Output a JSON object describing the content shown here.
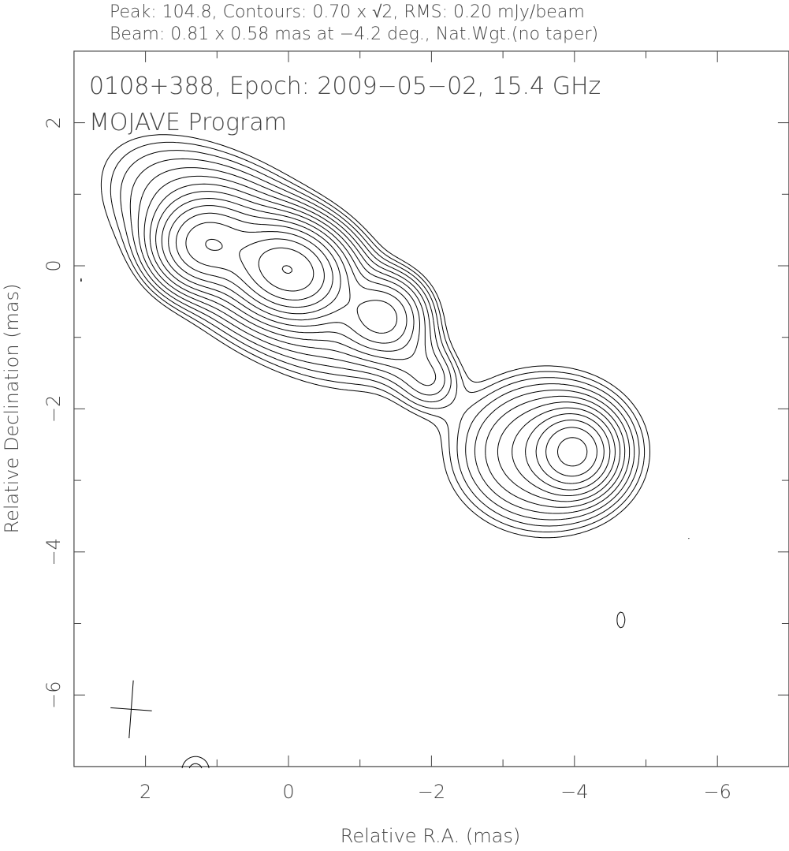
{
  "header": {
    "line1": "Peak: 104.8, Contours: 0.70 x √2, RMS: 0.20 mJy/beam",
    "line2": "Beam: 0.81 x 0.58 mas at −4.2 deg., Nat.Wgt.(no taper)"
  },
  "chart_data": {
    "type": "contour",
    "title": "0108+388, Epoch: 2009−05−02, 15.4 GHz",
    "subtitle": "MOJAVE Program",
    "xlabel": "Relative R.A. (mas)",
    "ylabel": "Relative Declination (mas)",
    "xlim": [
      3,
      -7
    ],
    "ylim": [
      -7,
      3
    ],
    "x_ticks": [
      "2",
      "0",
      "−2",
      "−4",
      "−6"
    ],
    "x_tick_values": [
      2,
      0,
      -2,
      -4,
      -6
    ],
    "y_ticks": [
      "2",
      "0",
      "−2",
      "−4",
      "−6"
    ],
    "y_tick_values": [
      2,
      0,
      -2,
      -4,
      -6
    ],
    "peak_mjy_per_beam": 104.8,
    "lowest_contour_mjy_per_beam": 0.7,
    "contour_factor": 1.41421356,
    "rms_mjy_per_beam": 0.2,
    "beam": {
      "major_mas": 0.81,
      "minor_mas": 0.58,
      "pa_deg": -4.2,
      "ra": 2.2,
      "dec": -6.2
    },
    "components": [
      {
        "ra": 0.0,
        "dec": -0.05,
        "peak": 78,
        "sa": 0.42,
        "sb": 0.32,
        "pa": 20
      },
      {
        "ra": 1.15,
        "dec": 0.3,
        "peak": 34,
        "sa": 0.36,
        "sb": 0.32,
        "pa": 0
      },
      {
        "ra": -1.3,
        "dec": -0.7,
        "peak": 16,
        "sa": 0.32,
        "sb": 0.3,
        "pa": 0
      },
      {
        "ra": 0.4,
        "dec": 0.05,
        "peak": 14,
        "sa": 1.05,
        "sb": 0.5,
        "pa": 35
      },
      {
        "ra": -1.7,
        "dec": -1.25,
        "peak": 3.5,
        "sa": 0.5,
        "sb": 0.28,
        "pa": 55
      },
      {
        "ra": -2.0,
        "dec": -1.6,
        "peak": 1.6,
        "sa": 0.2,
        "sb": 0.2,
        "pa": 0
      },
      {
        "ra": -4.0,
        "dec": -2.6,
        "peak": 30,
        "sa": 0.3,
        "sb": 0.3,
        "pa": 0
      },
      {
        "ra": -3.6,
        "dec": -2.6,
        "peak": 10,
        "sa": 0.62,
        "sb": 0.52,
        "pa": 0
      },
      {
        "ra": -4.65,
        "dec": -4.95,
        "peak": 0.78,
        "sa": 0.12,
        "sb": 0.24,
        "pa": 0
      },
      {
        "ra": -5.6,
        "dec": -3.8,
        "peak": 0.72,
        "sa": 0.05,
        "sb": 0.06,
        "pa": 0
      },
      {
        "ra": 1.3,
        "dec": -7.05,
        "peak": 1.1,
        "sa": 0.2,
        "sb": 0.2,
        "pa": 0
      },
      {
        "ra": 2.9,
        "dec": -0.2,
        "peak": 0.72,
        "sa": 0.04,
        "sb": 0.08,
        "pa": 0
      }
    ],
    "line_color": "#000000"
  }
}
